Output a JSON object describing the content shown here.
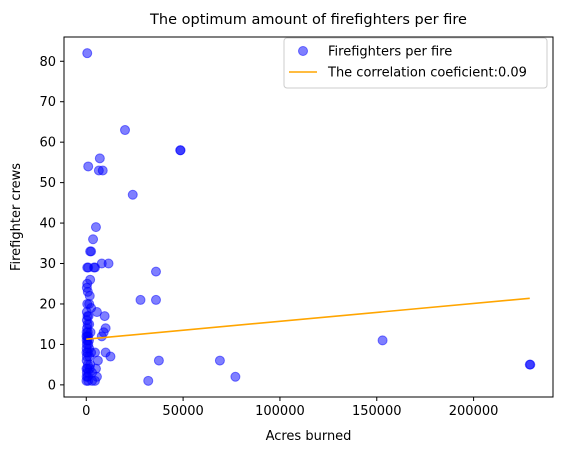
{
  "chart_data": {
    "type": "scatter",
    "title": "The optimum amount of firefighters per fire",
    "xlabel": "Acres burned",
    "ylabel": "Firefighter crews",
    "xlim": [
      -11500,
      241000
    ],
    "ylim": [
      -3,
      86
    ],
    "xticks": [
      0,
      50000,
      100000,
      150000,
      200000
    ],
    "yticks": [
      0,
      10,
      20,
      30,
      40,
      50,
      60,
      70,
      80
    ],
    "legend_position": "top-right",
    "colors": {
      "scatter": "#0000ff",
      "line": "#ffa500"
    },
    "series": [
      {
        "name": "Firefighters per fire",
        "kind": "scatter",
        "points": [
          [
            500,
            82
          ],
          [
            20000,
            63
          ],
          [
            48500,
            58
          ],
          [
            48700,
            58
          ],
          [
            1000,
            54
          ],
          [
            7000,
            56
          ],
          [
            6500,
            53
          ],
          [
            8500,
            53
          ],
          [
            24000,
            47
          ],
          [
            5000,
            39
          ],
          [
            3500,
            36
          ],
          [
            2000,
            33
          ],
          [
            2500,
            33
          ],
          [
            500,
            29
          ],
          [
            1000,
            29
          ],
          [
            4000,
            29
          ],
          [
            4500,
            29
          ],
          [
            8000,
            30
          ],
          [
            11500,
            30
          ],
          [
            36000,
            28
          ],
          [
            2000,
            26
          ],
          [
            500,
            25
          ],
          [
            300,
            24
          ],
          [
            800,
            23
          ],
          [
            1800,
            22
          ],
          [
            28000,
            21
          ],
          [
            36000,
            21
          ],
          [
            500,
            20
          ],
          [
            1500,
            20
          ],
          [
            2500,
            19
          ],
          [
            300,
            18
          ],
          [
            600,
            17
          ],
          [
            1200,
            17
          ],
          [
            5500,
            18
          ],
          [
            9500,
            17
          ],
          [
            300,
            16
          ],
          [
            700,
            15
          ],
          [
            1500,
            15
          ],
          [
            400,
            14
          ],
          [
            200,
            13
          ],
          [
            800,
            13
          ],
          [
            2200,
            13
          ],
          [
            10000,
            14
          ],
          [
            9000,
            13
          ],
          [
            100,
            12
          ],
          [
            500,
            12
          ],
          [
            1000,
            12
          ],
          [
            8000,
            12
          ],
          [
            200,
            11
          ],
          [
            700,
            11
          ],
          [
            1400,
            11
          ],
          [
            153000,
            11
          ],
          [
            300,
            10
          ],
          [
            1000,
            10
          ],
          [
            200,
            9
          ],
          [
            1500,
            9
          ],
          [
            100,
            8
          ],
          [
            800,
            8
          ],
          [
            2500,
            8
          ],
          [
            4500,
            8
          ],
          [
            10000,
            8
          ],
          [
            12500,
            7
          ],
          [
            300,
            7
          ],
          [
            1500,
            7
          ],
          [
            6000,
            6
          ],
          [
            37500,
            6
          ],
          [
            69000,
            6
          ],
          [
            200,
            6
          ],
          [
            800,
            5
          ],
          [
            2000,
            5
          ],
          [
            229000,
            5
          ],
          [
            229300,
            5
          ],
          [
            100,
            4
          ],
          [
            600,
            4
          ],
          [
            1800,
            4
          ],
          [
            5000,
            4
          ],
          [
            300,
            3
          ],
          [
            1200,
            3
          ],
          [
            3000,
            3
          ],
          [
            200,
            2
          ],
          [
            800,
            2
          ],
          [
            5500,
            2
          ],
          [
            77000,
            2
          ],
          [
            100,
            1
          ],
          [
            1000,
            1
          ],
          [
            3000,
            1
          ],
          [
            4500,
            1
          ],
          [
            32000,
            1
          ]
        ]
      },
      {
        "name": "The correlation coeficient:0.09",
        "kind": "line",
        "points": [
          [
            0,
            11.3
          ],
          [
            229000,
            21.4
          ]
        ]
      }
    ]
  }
}
